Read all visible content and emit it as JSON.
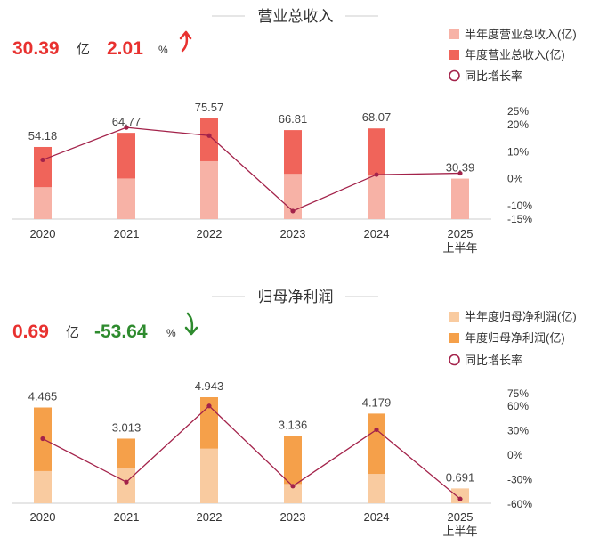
{
  "chart_data": [
    {
      "type": "bar",
      "title": "营业总收入",
      "headline": {
        "value": "30.39",
        "unit": "亿",
        "growth": "2.01",
        "growth_unit": "%",
        "direction": "up"
      },
      "categories": [
        "2020",
        "2021",
        "2022",
        "2023",
        "2024",
        "2025"
      ],
      "category_sub": [
        "",
        "",
        "",
        "",
        "",
        "上半年"
      ],
      "series": [
        {
          "name": "半年度营业总收入(亿)",
          "color": "#f7b2a6",
          "values": [
            24.0,
            30.5,
            43.5,
            34.0,
            33.2,
            30.39
          ]
        },
        {
          "name": "年度营业总收入(亿)",
          "color": "#f0645a",
          "values": [
            54.18,
            64.77,
            75.57,
            66.81,
            68.07,
            null
          ]
        },
        {
          "name": "同比增长率",
          "color": "#a3224a",
          "type": "line",
          "values": [
            7,
            19,
            16,
            -12,
            1.5,
            2.01
          ]
        }
      ],
      "bar_labels": [
        "54.18",
        "64.77",
        "75.57",
        "66.81",
        "68.07",
        "30.39"
      ],
      "ylim": [
        0,
        75.57
      ],
      "y2lim": [
        -15,
        25
      ],
      "y2_ticks": [
        "25%",
        "20%",
        "10%",
        "0%",
        "-10%",
        "-15%"
      ],
      "y2_tick_values": [
        25,
        20,
        10,
        0,
        -10,
        -15
      ]
    },
    {
      "type": "bar",
      "title": "归母净利润",
      "headline": {
        "value": "0.69",
        "unit": "亿",
        "growth": "-53.64",
        "growth_unit": "%",
        "direction": "down"
      },
      "categories": [
        "2020",
        "2021",
        "2022",
        "2023",
        "2024",
        "2025"
      ],
      "category_sub": [
        "",
        "",
        "",
        "",
        "",
        "上半年"
      ],
      "series": [
        {
          "name": "半年度归母净利润(亿)",
          "color": "#f9cba0",
          "values": [
            1.5,
            1.65,
            2.55,
            0.9,
            1.37,
            0.691
          ]
        },
        {
          "name": "年度归母净利润(亿)",
          "color": "#f5a04a",
          "values": [
            4.465,
            3.013,
            4.943,
            3.136,
            4.179,
            null
          ]
        },
        {
          "name": "同比增长率",
          "color": "#a3224a",
          "type": "line",
          "values": [
            20,
            -33,
            60,
            -38,
            31,
            -53.64
          ]
        }
      ],
      "bar_labels": [
        "4.465",
        "3.013",
        "4.943",
        "3.136",
        "4.179",
        "0.691"
      ],
      "ylim": [
        0,
        4.943
      ],
      "y2lim": [
        -60,
        75
      ],
      "y2_ticks": [
        "75%",
        "60%",
        "30%",
        "0%",
        "-30%",
        "-60%"
      ],
      "y2_tick_values": [
        75,
        60,
        30,
        0,
        -30,
        -60
      ]
    }
  ]
}
